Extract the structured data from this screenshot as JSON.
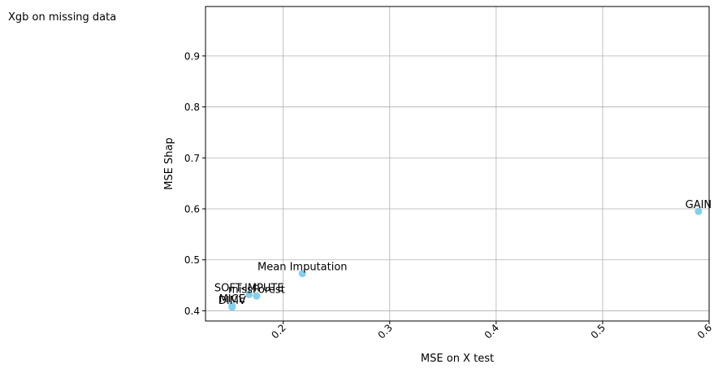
{
  "header": {
    "title": "Xgb on missing data"
  },
  "chart_data": {
    "type": "scatter",
    "title": "",
    "xlabel": "MSE on X test",
    "ylabel": "MSE Shap",
    "xlim": [
      0.127,
      0.6
    ],
    "ylim": [
      0.38,
      0.997
    ],
    "xticks": [
      {
        "value": 0.2,
        "label": "0.2"
      },
      {
        "value": 0.3,
        "label": "0.3"
      },
      {
        "value": 0.4,
        "label": "0.4"
      },
      {
        "value": 0.5,
        "label": "0.5"
      },
      {
        "value": 0.6,
        "label": "0.6"
      }
    ],
    "yticks": [
      {
        "value": 0.4,
        "label": "0.4"
      },
      {
        "value": 0.5,
        "label": "0.5"
      },
      {
        "value": 0.6,
        "label": "0.6"
      },
      {
        "value": 0.7,
        "label": "0.7"
      },
      {
        "value": 0.8,
        "label": "0.8"
      },
      {
        "value": 0.9,
        "label": "0.9"
      }
    ],
    "grid": true,
    "marker_color": "#87ceeb",
    "points": [
      {
        "label": "GAIN",
        "x": 0.59,
        "y": 0.595
      },
      {
        "label": "Mean Imputation",
        "x": 0.218,
        "y": 0.473
      },
      {
        "label": "SOFT-IMPUTE",
        "x": 0.168,
        "y": 0.432
      },
      {
        "label": "missForest",
        "x": 0.175,
        "y": 0.429
      },
      {
        "label": "MICE",
        "x": 0.152,
        "y": 0.41
      },
      {
        "label": "DIMV",
        "x": 0.152,
        "y": 0.407
      }
    ]
  }
}
